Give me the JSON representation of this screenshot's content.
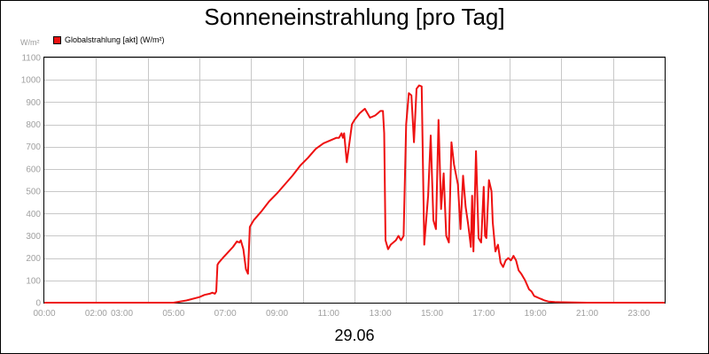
{
  "chart_data": {
    "type": "line",
    "title": "Sonneneinstrahlung [pro Tag]",
    "unit_label": "W/m²",
    "xlabel": "29.06",
    "ylabel": "",
    "grid": true,
    "legend_position": "top-left",
    "ylim": [
      0,
      1100
    ],
    "xlim_hours": [
      0,
      24
    ],
    "y_ticks": [
      0,
      100,
      200,
      300,
      400,
      500,
      600,
      700,
      800,
      900,
      1000,
      1100
    ],
    "x_ticks": [
      {
        "h": 0,
        "label": "00:00"
      },
      {
        "h": 2,
        "label": "02:00"
      },
      {
        "h": 3,
        "label": "03:00"
      },
      {
        "h": 5,
        "label": "05:00"
      },
      {
        "h": 7,
        "label": "07:00"
      },
      {
        "h": 9,
        "label": "09:00"
      },
      {
        "h": 11,
        "label": "11:00"
      },
      {
        "h": 13,
        "label": "13:00"
      },
      {
        "h": 15,
        "label": "15:00"
      },
      {
        "h": 17,
        "label": "17:00"
      },
      {
        "h": 19,
        "label": "19:00"
      },
      {
        "h": 21,
        "label": "21:00"
      },
      {
        "h": 23,
        "label": "23:00"
      }
    ],
    "series": [
      {
        "name": "Globalstrahlung [akt] (W/m²)",
        "color": "#ee1111",
        "x": [
          0,
          5.0,
          5.5,
          6.0,
          6.2,
          6.4,
          6.5,
          6.6,
          6.65,
          6.7,
          6.75,
          6.9,
          7.1,
          7.3,
          7.45,
          7.55,
          7.6,
          7.7,
          7.8,
          7.88,
          7.95,
          8.1,
          8.4,
          8.7,
          9.0,
          9.3,
          9.6,
          9.9,
          10.2,
          10.5,
          10.8,
          11.1,
          11.3,
          11.4,
          11.5,
          11.55,
          11.6,
          11.7,
          11.9,
          12.0,
          12.2,
          12.3,
          12.4,
          12.6,
          12.8,
          12.9,
          13.0,
          13.1,
          13.15,
          13.2,
          13.3,
          13.4,
          13.6,
          13.7,
          13.8,
          13.9,
          14.0,
          14.1,
          14.2,
          14.3,
          14.4,
          14.5,
          14.6,
          14.7,
          14.85,
          14.95,
          15.05,
          15.15,
          15.25,
          15.35,
          15.45,
          15.55,
          15.65,
          15.75,
          15.85,
          16.0,
          16.1,
          16.2,
          16.3,
          16.4,
          16.5,
          16.55,
          16.6,
          16.7,
          16.8,
          16.9,
          17.0,
          17.05,
          17.1,
          17.2,
          17.3,
          17.35,
          17.45,
          17.55,
          17.65,
          17.75,
          17.85,
          17.95,
          18.05,
          18.15,
          18.25,
          18.35,
          18.45,
          18.6,
          18.75,
          18.85,
          18.95,
          19.05,
          19.15,
          19.25,
          19.35,
          19.5,
          19.75,
          20.0,
          20.5,
          21.0,
          22.0,
          23.0,
          24.0
        ],
        "values": [
          0,
          0,
          10,
          25,
          35,
          40,
          45,
          40,
          50,
          170,
          180,
          200,
          225,
          250,
          275,
          270,
          280,
          240,
          150,
          130,
          340,
          370,
          410,
          455,
          490,
          530,
          570,
          615,
          650,
          690,
          715,
          730,
          740,
          740,
          760,
          740,
          760,
          630,
          800,
          820,
          850,
          860,
          870,
          830,
          840,
          850,
          860,
          860,
          760,
          280,
          240,
          260,
          280,
          300,
          280,
          300,
          800,
          940,
          930,
          720,
          960,
          975,
          970,
          260,
          480,
          750,
          370,
          330,
          820,
          420,
          580,
          300,
          270,
          720,
          620,
          530,
          330,
          570,
          430,
          350,
          250,
          480,
          230,
          680,
          290,
          270,
          520,
          300,
          290,
          550,
          500,
          360,
          230,
          260,
          180,
          160,
          190,
          200,
          190,
          210,
          190,
          145,
          130,
          100,
          60,
          50,
          30,
          25,
          20,
          15,
          10,
          5,
          3,
          2,
          1,
          0,
          0,
          0,
          0
        ]
      }
    ]
  }
}
